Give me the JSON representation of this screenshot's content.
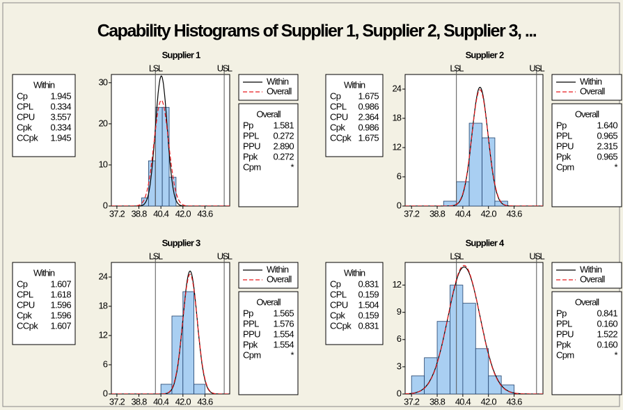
{
  "title": "Capability Histograms of Supplier 1, Supplier 2, Supplier 3, ...",
  "chart_data": [
    {
      "type": "histogram",
      "title": "Supplier 1",
      "bins": [
        39.0,
        39.5,
        40.0,
        40.5,
        41.0,
        41.5
      ],
      "values": [
        2,
        11,
        24,
        24,
        7
      ],
      "color": "#a9cff2",
      "xlim": [
        36.8,
        45.4
      ],
      "xticks": [
        37.2,
        38.8,
        40.4,
        {
          "value": 42,
          "label": "42.0"
        },
        43.6
      ],
      "ylim": [
        0,
        32
      ],
      "yticks": [
        0,
        10,
        20,
        30
      ],
      "spec_limits": [
        {
          "label": "LSL",
          "value": 40
        },
        {
          "label": "USL",
          "value": 45
        }
      ],
      "series": [
        {
          "name": "Within",
          "color": "#000000"
        },
        {
          "name": "Overall",
          "color": "#e8191c"
        }
      ],
      "within": {
        "title": "Within",
        "rows": [
          [
            "Cp",
            "1.945"
          ],
          [
            "CPL",
            "0.334"
          ],
          [
            "CPU",
            "3.557"
          ],
          [
            "Cpk",
            "0.334"
          ],
          [
            "CCpk",
            "1.945"
          ]
        ]
      },
      "overall": {
        "title": "Overall",
        "rows": [
          [
            "Pp",
            "1.581"
          ],
          [
            "PPL",
            "0.272"
          ],
          [
            "PPU",
            "2.890"
          ],
          [
            "Ppk",
            "0.272"
          ],
          [
            "Cpm",
            "*"
          ]
        ]
      }
    },
    {
      "type": "histogram",
      "title": "Supplier 2",
      "bins": [
        39.2,
        40.0,
        40.8,
        41.6,
        42.4,
        43.2
      ],
      "values": [
        1,
        5,
        17,
        14,
        1
      ],
      "color": "#a9cff2",
      "xlim": [
        36.8,
        45.4
      ],
      "xticks": [
        37.2,
        38.8,
        40.4,
        {
          "value": 42,
          "label": "42.0"
        },
        43.6
      ],
      "ylim": [
        0,
        27
      ],
      "yticks": [
        0,
        6,
        12,
        18,
        24
      ],
      "spec_limits": [
        {
          "label": "LSL",
          "value": 40
        },
        {
          "label": "USL",
          "value": 45
        }
      ],
      "series": [
        {
          "name": "Within",
          "color": "#000000"
        },
        {
          "name": "Overall",
          "color": "#e8191c"
        }
      ],
      "within": {
        "title": "Within",
        "rows": [
          [
            "Cp",
            "1.675"
          ],
          [
            "CPL",
            "0.986"
          ],
          [
            "CPU",
            "2.364"
          ],
          [
            "Cpk",
            "0.986"
          ],
          [
            "CCpk",
            "1.675"
          ]
        ]
      },
      "overall": {
        "title": "Overall",
        "rows": [
          [
            "Pp",
            "1.640"
          ],
          [
            "PPL",
            "0.965"
          ],
          [
            "PPU",
            "2.315"
          ],
          [
            "Ppk",
            "0.965"
          ],
          [
            "Cpm",
            "*"
          ]
        ]
      }
    },
    {
      "type": "histogram",
      "title": "Supplier 3",
      "bins": [
        40.4,
        41.2,
        42.0,
        42.8,
        43.6
      ],
      "values": [
        2,
        16,
        21,
        2
      ],
      "color": "#a9cff2",
      "xlim": [
        36.8,
        45.4
      ],
      "xticks": [
        37.2,
        38.8,
        40.4,
        {
          "value": 42,
          "label": "42.0"
        },
        43.6
      ],
      "ylim": [
        0,
        27
      ],
      "yticks": [
        0,
        6,
        12,
        18,
        24
      ],
      "spec_limits": [
        {
          "label": "LSL",
          "value": 40
        },
        {
          "label": "USL",
          "value": 45
        }
      ],
      "series": [
        {
          "name": "Within",
          "color": "#000000"
        },
        {
          "name": "Overall",
          "color": "#e8191c"
        }
      ],
      "within": {
        "title": "Within",
        "rows": [
          [
            "Cp",
            "1.607"
          ],
          [
            "CPL",
            "1.618"
          ],
          [
            "CPU",
            "1.596"
          ],
          [
            "Cpk",
            "1.596"
          ],
          [
            "CCpk",
            "1.607"
          ]
        ]
      },
      "overall": {
        "title": "Overall",
        "rows": [
          [
            "Pp",
            "1.565"
          ],
          [
            "PPL",
            "1.576"
          ],
          [
            "PPU",
            "1.554"
          ],
          [
            "Ppk",
            "1.554"
          ],
          [
            "Cpm",
            "*"
          ]
        ]
      }
    },
    {
      "type": "histogram",
      "title": "Supplier 4",
      "bins": [
        37.2,
        38.0,
        38.8,
        39.6,
        40.4,
        41.2,
        42.0,
        42.8,
        43.6
      ],
      "values": [
        2,
        4,
        8,
        12,
        10,
        5,
        2,
        1
      ],
      "color": "#a9cff2",
      "xlim": [
        36.8,
        45.4
      ],
      "xticks": [
        37.2,
        38.8,
        40.4,
        {
          "value": 42,
          "label": "42.0"
        },
        43.6
      ],
      "ylim": [
        0,
        14.5
      ],
      "yticks": [
        0,
        3,
        6,
        9,
        12
      ],
      "spec_limits": [
        {
          "label": "LSL",
          "value": 40
        },
        {
          "label": "USL",
          "value": 45
        }
      ],
      "series": [
        {
          "name": "Within",
          "color": "#000000"
        },
        {
          "name": "Overall",
          "color": "#e8191c"
        }
      ],
      "within": {
        "title": "Within",
        "rows": [
          [
            "Cp",
            "0.831"
          ],
          [
            "CPL",
            "0.159"
          ],
          [
            "CPU",
            "1.504"
          ],
          [
            "Cpk",
            "0.159"
          ],
          [
            "CCpk",
            "0.831"
          ]
        ]
      },
      "overall": {
        "title": "Overall",
        "rows": [
          [
            "Pp",
            "0.841"
          ],
          [
            "PPL",
            "0.160"
          ],
          [
            "PPU",
            "1.522"
          ],
          [
            "Ppk",
            "0.160"
          ],
          [
            "Cpm",
            "*"
          ]
        ]
      }
    }
  ]
}
